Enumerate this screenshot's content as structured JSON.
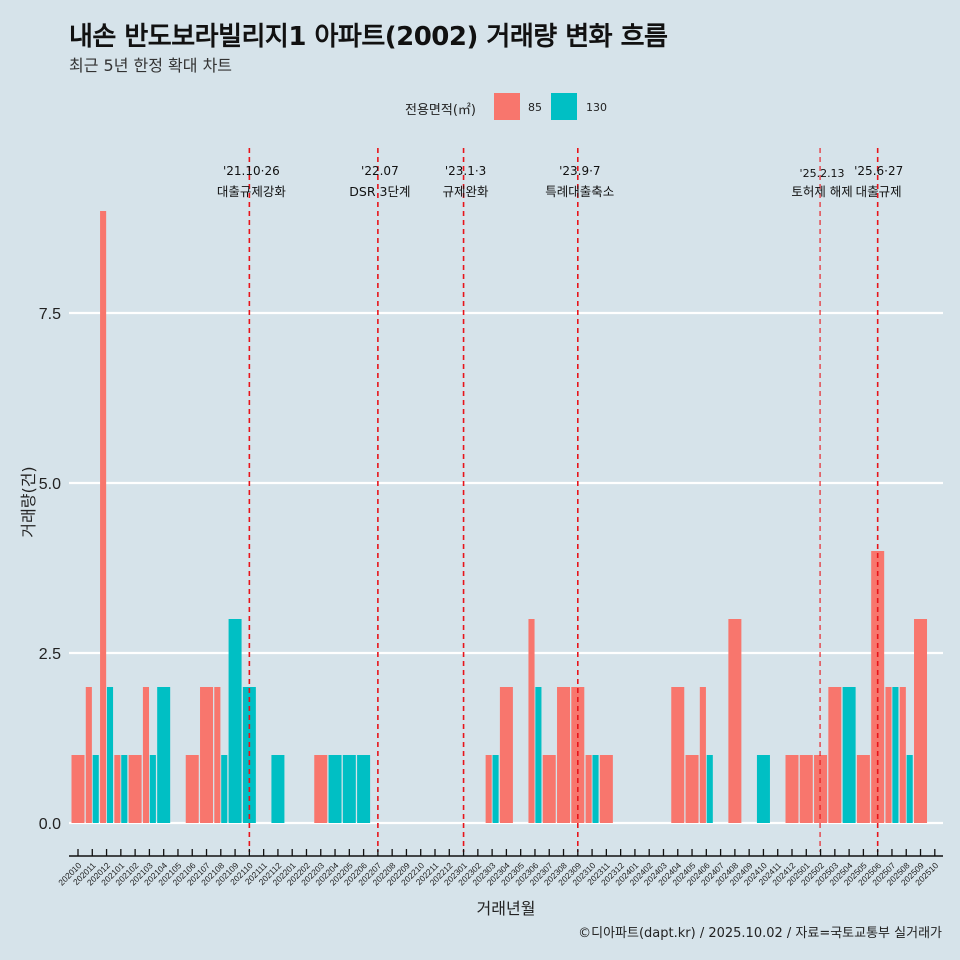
{
  "header": {
    "title": "내손 반도보라빌리지1 아파트(2002) 거래량 변화 흐름",
    "subtitle": "최근 5년 한정 확대 차트"
  },
  "legend": {
    "title": "전용면적(㎡)",
    "items": [
      {
        "label": "85",
        "color": "#f8766d"
      },
      {
        "label": "130",
        "color": "#00bfc4"
      }
    ]
  },
  "footer": "©디아파트(dapt.kr) / 2025.10.02 / 자료=국토교통부 실거래가",
  "chart_data": {
    "type": "bar",
    "title": "내손 반도보라빌리지1 아파트(2002) 거래량 변화 흐름",
    "subtitle": "최근 5년 한정 확대 차트",
    "xlabel": "거래년월",
    "ylabel": "거래량(건)",
    "ylim": [
      -0.4,
      9.5
    ],
    "yticks": [
      0.0,
      2.5,
      5.0,
      7.5
    ],
    "ytick_labels": [
      "0.0",
      "2.5",
      "5.0",
      "7.5"
    ],
    "grid": "horizontal-major",
    "legend_position": "top",
    "categories": [
      "202010",
      "202011",
      "202012",
      "202101",
      "202102",
      "202103",
      "202104",
      "202105",
      "202106",
      "202107",
      "202108",
      "202109",
      "202110",
      "202111",
      "202112",
      "202201",
      "202202",
      "202203",
      "202204",
      "202205",
      "202206",
      "202207",
      "202208",
      "202209",
      "202210",
      "202211",
      "202212",
      "202301",
      "202302",
      "202303",
      "202304",
      "202305",
      "202306",
      "202307",
      "202308",
      "202309",
      "202310",
      "202311",
      "202312",
      "202401",
      "202402",
      "202403",
      "202404",
      "202405",
      "202406",
      "202407",
      "202408",
      "202409",
      "202410",
      "202411",
      "202412",
      "202501",
      "202502",
      "202503",
      "202504",
      "202505",
      "202506",
      "202507",
      "202508",
      "202509",
      "202510"
    ],
    "series": [
      {
        "name": "85",
        "color": "#f8766d",
        "values": [
          1,
          2,
          9,
          1,
          1,
          2,
          0,
          0,
          1,
          2,
          2,
          0,
          0,
          0,
          0,
          0,
          0,
          1,
          0,
          0,
          0,
          0,
          0,
          0,
          0,
          0,
          0,
          0,
          0,
          1,
          2,
          0,
          3,
          1,
          2,
          2,
          1,
          1,
          0,
          0,
          0,
          0,
          2,
          1,
          2,
          0,
          3,
          0,
          0,
          0,
          1,
          1,
          1,
          2,
          0,
          1,
          4,
          2,
          2,
          3,
          0
        ]
      },
      {
        "name": "130",
        "color": "#00bfc4",
        "values": [
          0,
          1,
          2,
          1,
          0,
          1,
          2,
          0,
          0,
          0,
          1,
          3,
          2,
          0,
          1,
          0,
          0,
          0,
          1,
          1,
          1,
          0,
          0,
          0,
          0,
          0,
          0,
          0,
          0,
          1,
          0,
          0,
          2,
          0,
          0,
          0,
          1,
          0,
          0,
          0,
          0,
          0,
          0,
          0,
          1,
          0,
          0,
          0,
          1,
          0,
          0,
          0,
          0,
          0,
          2,
          0,
          0,
          2,
          1,
          0,
          0
        ]
      }
    ],
    "events": [
      {
        "month": "202110",
        "date": "'21.10·26",
        "label": "대출규제강화"
      },
      {
        "month": "202207",
        "date": "'22.07",
        "label": "DSR 3단계"
      },
      {
        "month": "202301",
        "date": "'23.1·3",
        "label": "규제완화"
      },
      {
        "month": "202309",
        "date": "'23.9·7",
        "label": "특례대출축소"
      },
      {
        "month": "202502",
        "date": "'25.2.13",
        "label": "토허제 해제"
      },
      {
        "month": "202506",
        "date": "'25.6·27",
        "label": "대출규제"
      }
    ]
  }
}
